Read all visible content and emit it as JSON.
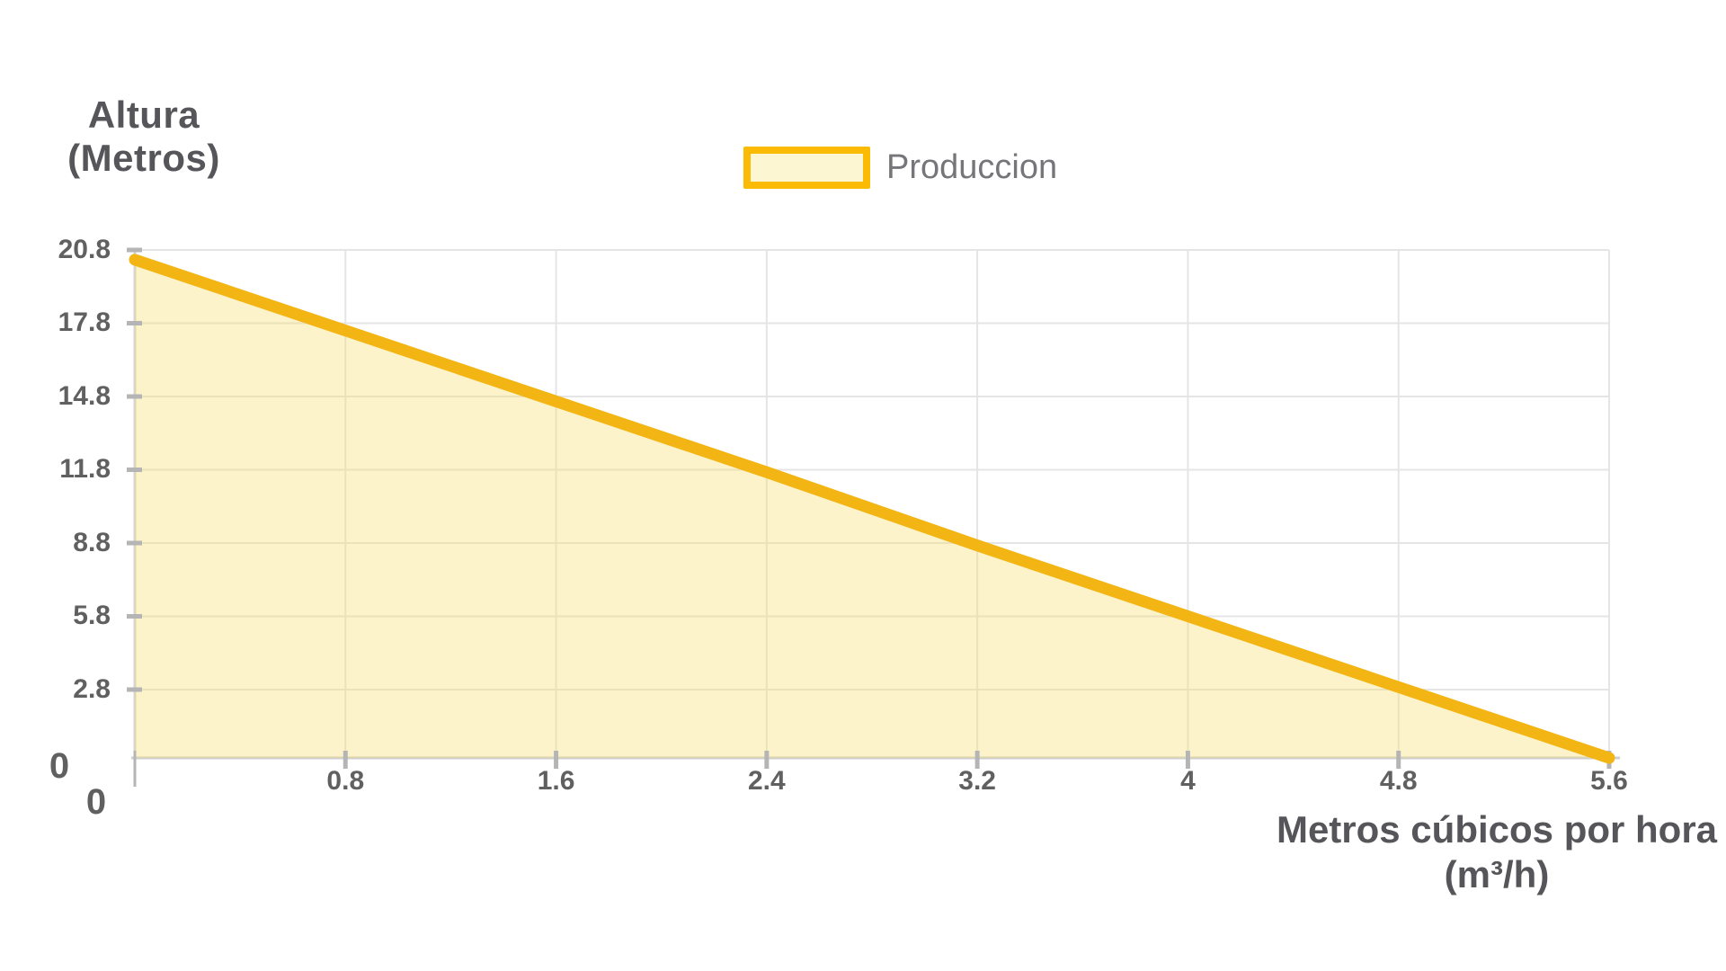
{
  "page": {
    "background": "#ffffff"
  },
  "y_axis": {
    "title_line1": "Altura",
    "title_line2": "(Metros)"
  },
  "x_axis": {
    "title_line1": "Metros cúbicos por hora",
    "title_line2": "(m³/h)"
  },
  "legend": {
    "label": "Produccion",
    "swatch_fill": "#FDF6D2",
    "swatch_border": "#FBBB04"
  },
  "colors": {
    "line": "#F3B513",
    "area_fill": "rgba(246,221,106,0.35)",
    "gridline": "#E5E5E5",
    "axis_border": "#CFCFCF",
    "tick_mark": "#B5B5B5",
    "title_text": "#56565a",
    "tick_text": "#606060",
    "legend_text": "#76767a"
  },
  "chart_data": {
    "type": "area",
    "title": "",
    "legend_entries": [
      "Produccion"
    ],
    "legend_position": "top",
    "grid": true,
    "xlabel": "Metros cúbicos por hora (m³/h)",
    "ylabel": "Altura (Metros)",
    "xlim": [
      0,
      5.6
    ],
    "ylim": [
      0,
      20.8
    ],
    "x_ticks": [
      0,
      0.8,
      1.6,
      2.4,
      3.2,
      4,
      4.8,
      5.6
    ],
    "y_ticks": [
      0,
      2.8,
      5.8,
      8.8,
      11.8,
      14.8,
      17.8,
      20.8
    ],
    "series": [
      {
        "name": "Produccion",
        "points": [
          {
            "x": 0,
            "y": 20.4
          },
          {
            "x": 0.8,
            "y": 17.5
          },
          {
            "x": 1.6,
            "y": 14.6
          },
          {
            "x": 2.4,
            "y": 11.7
          },
          {
            "x": 3.2,
            "y": 8.7
          },
          {
            "x": 4,
            "y": 5.8
          },
          {
            "x": 4.8,
            "y": 2.9
          },
          {
            "x": 5.6,
            "y": 0
          }
        ]
      }
    ]
  }
}
